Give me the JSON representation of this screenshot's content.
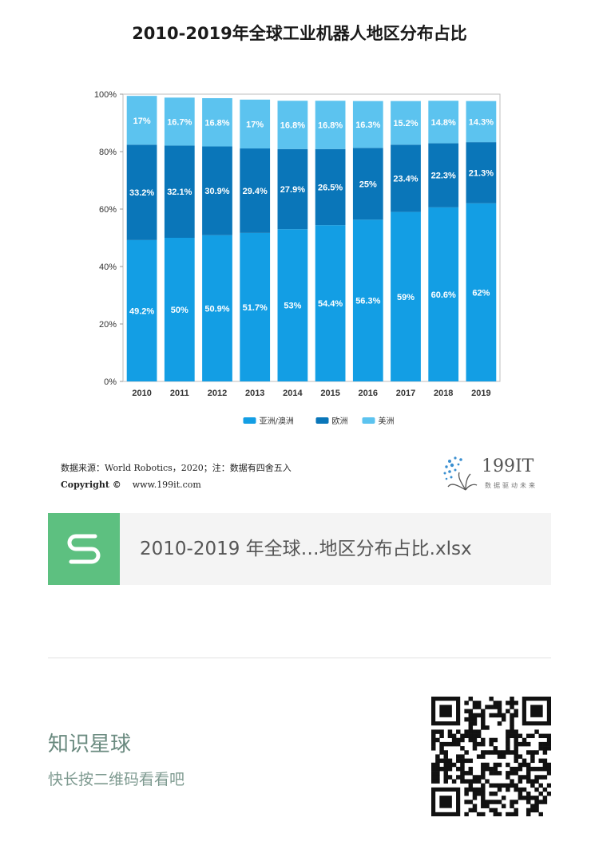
{
  "title": "2010-2019年全球工业机器人地区分布占比",
  "chart_data": {
    "type": "bar",
    "stacked": true,
    "categories": [
      "2010",
      "2011",
      "2012",
      "2013",
      "2014",
      "2015",
      "2016",
      "2017",
      "2018",
      "2019"
    ],
    "series": [
      {
        "name": "亚洲/澳洲",
        "color": "#139ee4",
        "values": [
          49.2,
          50,
          50.9,
          51.7,
          53,
          54.4,
          56.3,
          59,
          60.6,
          62
        ],
        "labels": [
          "49.2%",
          "50%",
          "50.9%",
          "51.7%",
          "53%",
          "54.4%",
          "56.3%",
          "59%",
          "60.6%",
          "62%"
        ]
      },
      {
        "name": "欧洲",
        "color": "#0a76b9",
        "values": [
          33.2,
          32.1,
          30.9,
          29.4,
          27.9,
          26.5,
          25,
          23.4,
          22.3,
          21.3
        ],
        "labels": [
          "33.2%",
          "32.1%",
          "30.9%",
          "29.4%",
          "27.9%",
          "26.5%",
          "25%",
          "23.4%",
          "22.3%",
          "21.3%"
        ]
      },
      {
        "name": "美洲",
        "color": "#5cc3ef",
        "values": [
          17,
          16.7,
          16.8,
          17,
          16.8,
          16.8,
          16.3,
          15.2,
          14.8,
          14.3
        ],
        "labels": [
          "17%",
          "16.7%",
          "16.8%",
          "17%",
          "16.8%",
          "16.8%",
          "16.3%",
          "15.2%",
          "14.8%",
          "14.3%"
        ]
      }
    ],
    "yticks": [
      "0%",
      "20%",
      "40%",
      "60%",
      "80%",
      "100%"
    ],
    "ylim": [
      0,
      100
    ],
    "grid": false,
    "legend_position": "bottom"
  },
  "source": {
    "line1": "数据来源：World Robotics，2020；注：数据有四舍五入",
    "copyright": "Copyright ©",
    "site": "www.199it.com"
  },
  "logo": {
    "brand": "199IT",
    "slogan": "数据驱动未来"
  },
  "file": {
    "name": "2010-2019 年全球…地区分布占比.xlsx",
    "icon": "spreadsheet-s-icon"
  },
  "planet": {
    "title": "知识星球",
    "subtitle": "快长按二维码看看吧"
  }
}
